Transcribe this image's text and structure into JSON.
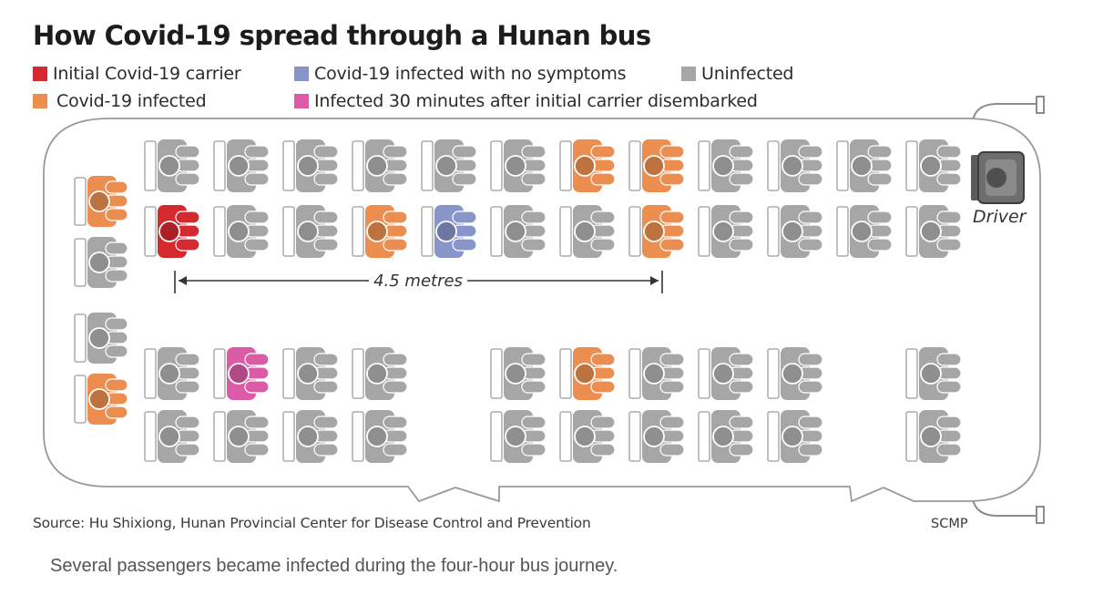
{
  "title": "How Covid-19 spread through a Hunan bus",
  "legend": [
    {
      "key": "carrier",
      "label": "Initial Covid-19 carrier",
      "color": "#d42a2f"
    },
    {
      "key": "asymptomatic",
      "label": "Covid-19 infected with no symptoms",
      "color": "#8795cb"
    },
    {
      "key": "uninfected",
      "label": "Uninfected",
      "color": "#a6a6a6"
    },
    {
      "key": "infected",
      "label": "Covid-19 infected",
      "color": "#ec8e4f"
    },
    {
      "key": "late",
      "label": "Infected 30 minutes after initial carrier disembarked",
      "color": "#dc5ba6"
    }
  ],
  "driver_label": "Driver",
  "distance_label": "4.5 metres",
  "seat_rows": {
    "row_1": [
      "uninfected",
      "uninfected",
      "uninfected",
      "uninfected",
      "uninfected",
      "uninfected",
      "infected",
      "infected",
      "uninfected",
      "uninfected",
      "uninfected",
      "uninfected"
    ],
    "row_2": [
      "carrier",
      "uninfected",
      "uninfected",
      "infected",
      "asymptomatic",
      "uninfected",
      "uninfected",
      "infected",
      "uninfected",
      "uninfected",
      "uninfected",
      "uninfected"
    ],
    "row_3": [
      "uninfected",
      "late",
      "uninfected",
      "uninfected",
      null,
      "uninfected",
      "infected",
      "uninfected",
      "uninfected",
      "uninfected",
      null,
      "uninfected"
    ],
    "row_4": [
      "uninfected",
      "uninfected",
      "uninfected",
      "uninfected",
      null,
      "uninfected",
      "uninfected",
      "uninfected",
      "uninfected",
      "uninfected",
      null,
      "uninfected"
    ]
  },
  "rear_seats": [
    "infected",
    "uninfected",
    "uninfected",
    "infected"
  ],
  "source": "Source: Hu Shixiong, Hunan Provincial Center for Disease Control and Prevention",
  "credit": "SCMP",
  "caption": "Several passengers became infected during the four-hour bus journey."
}
